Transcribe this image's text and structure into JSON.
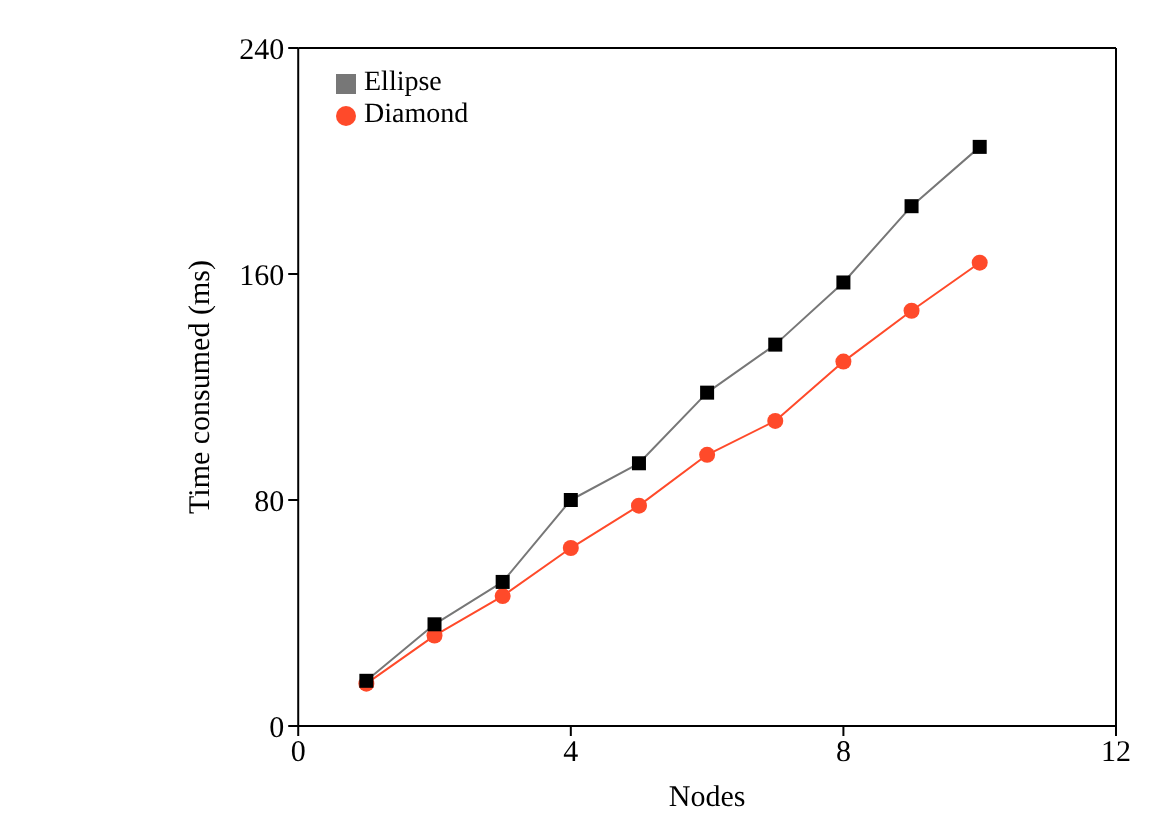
{
  "chart_data": {
    "type": "line",
    "xlabel": "Nodes",
    "ylabel": "Time consumed (ms)",
    "x": [
      1,
      2,
      3,
      4,
      5,
      6,
      7,
      8,
      9,
      10
    ],
    "series": [
      {
        "name": "Ellipse",
        "color": "#000000",
        "marker": "square",
        "values": [
          16,
          36,
          51,
          80,
          93,
          118,
          135,
          157,
          184,
          205
        ]
      },
      {
        "name": "Diamond",
        "color": "#ff4a2a",
        "marker": "circle",
        "values": [
          15,
          32,
          46,
          63,
          78,
          96,
          108,
          129,
          147,
          164
        ]
      }
    ],
    "xlim": [
      0,
      12
    ],
    "xticks": [
      0,
      4,
      8,
      12
    ],
    "ylim": [
      0,
      240
    ],
    "yticks": [
      0,
      80,
      160,
      240
    ],
    "grid": false,
    "legend": "top left"
  }
}
